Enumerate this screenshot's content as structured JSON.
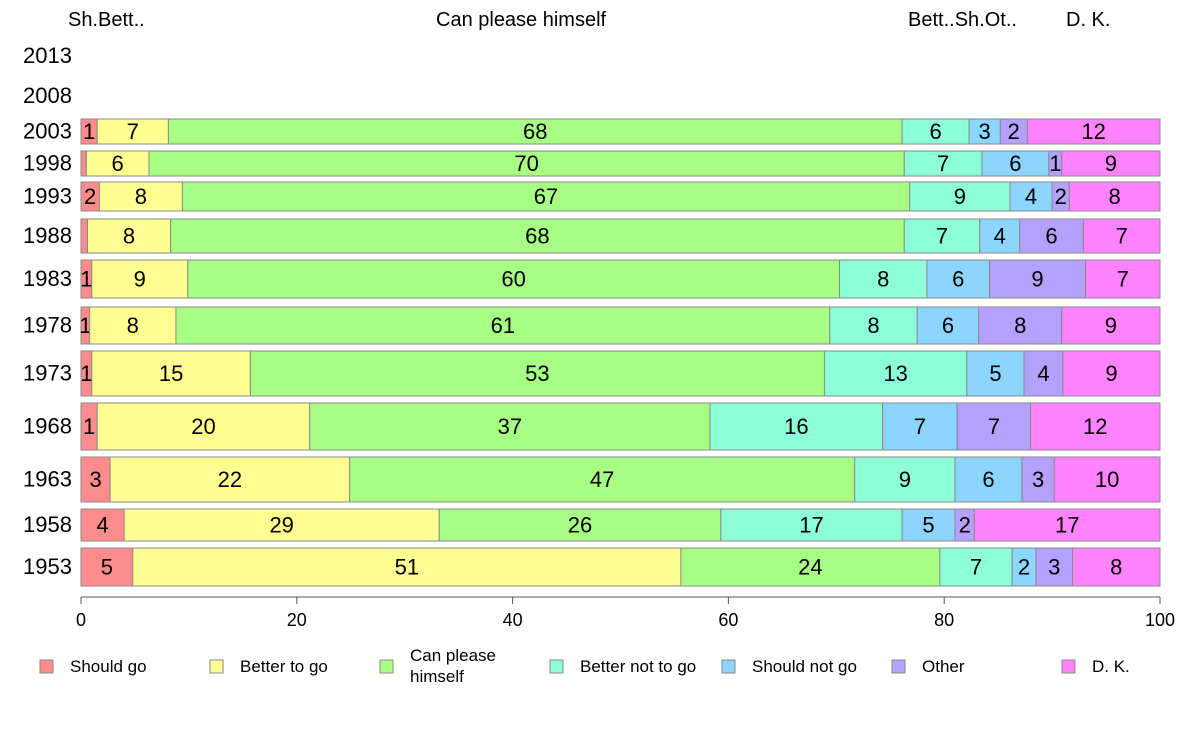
{
  "chart_data": {
    "type": "bar",
    "orientation": "horizontal",
    "stacked": true,
    "top_labels": [
      "Sh.Bett..",
      "Can please himself",
      "Bett..Sh.Ot..",
      "D. K."
    ],
    "categories": [
      "2013",
      "2008",
      "2003",
      "1998",
      "1993",
      "1988",
      "1983",
      "1978",
      "1973",
      "1968",
      "1963",
      "1958",
      "1953"
    ],
    "series": [
      {
        "name": "Should go",
        "color": "#ff8c8c",
        "values": [
          null,
          null,
          1.5,
          0.5,
          1.7,
          0.6,
          1.0,
          0.8,
          1.0,
          1.5,
          2.7,
          4.0,
          4.8
        ]
      },
      {
        "name": "Better to go",
        "color": "#ffff91",
        "values": [
          null,
          null,
          6.6,
          5.8,
          7.7,
          7.7,
          8.9,
          8.0,
          14.7,
          19.7,
          22.2,
          29.2,
          50.8
        ]
      },
      {
        "name": "Can please himself",
        "color": "#a7ff84",
        "values": [
          null,
          null,
          68.0,
          70.0,
          67.4,
          68.0,
          60.4,
          60.6,
          53.2,
          37.1,
          46.8,
          26.1,
          24.0
        ]
      },
      {
        "name": "Better not to go",
        "color": "#8dffd8",
        "values": [
          null,
          null,
          6.2,
          7.2,
          9.3,
          7.0,
          8.1,
          8.1,
          13.2,
          16.0,
          9.3,
          16.8,
          6.7
        ]
      },
      {
        "name": "Should not go",
        "color": "#8cd5ff",
        "values": [
          null,
          null,
          2.9,
          6.2,
          3.9,
          3.7,
          5.8,
          5.7,
          5.3,
          6.9,
          6.2,
          4.9,
          2.2
        ]
      },
      {
        "name": "Other",
        "color": "#b4a0ff",
        "values": [
          null,
          null,
          2.5,
          1.2,
          1.6,
          5.9,
          8.9,
          7.7,
          3.6,
          6.8,
          3.0,
          1.8,
          3.4
        ]
      },
      {
        "name": "D. K.",
        "color": "#ff82ff",
        "values": [
          null,
          null,
          12.3,
          9.1,
          8.4,
          7.1,
          6.9,
          9.1,
          9.0,
          12.0,
          9.8,
          17.2,
          8.1
        ]
      }
    ],
    "data_labels": [
      [],
      [],
      [
        "1",
        "7",
        "68",
        "6",
        "3",
        "2",
        "12"
      ],
      [
        "",
        "6",
        "70",
        "7",
        "6",
        "1",
        "9"
      ],
      [
        "2",
        "8",
        "67",
        "9",
        "4",
        "2",
        "8"
      ],
      [
        "",
        "8",
        "68",
        "7",
        "4",
        "6",
        "7"
      ],
      [
        "1",
        "9",
        "60",
        "8",
        "6",
        "9",
        "7"
      ],
      [
        "1",
        "8",
        "61",
        "8",
        "6",
        "8",
        "9"
      ],
      [
        "1",
        "15",
        "53",
        "13",
        "5",
        "4",
        "9"
      ],
      [
        "1",
        "20",
        "37",
        "16",
        "7",
        "7",
        "12"
      ],
      [
        "3",
        "22",
        "47",
        "9",
        "6",
        "3",
        "10"
      ],
      [
        "4",
        "29",
        "26",
        "17",
        "5",
        "2",
        "17"
      ],
      [
        "5",
        "51",
        "24",
        "7",
        "2",
        "3",
        "8"
      ]
    ],
    "x_ticks": [
      "0",
      "20",
      "40",
      "60",
      "80",
      "100"
    ],
    "xlim": [
      0,
      100
    ],
    "legend": [
      "Should go",
      "Better to go",
      "Can please himself",
      "Better not to go",
      "Should not go",
      "Other",
      "D. K."
    ],
    "legend_position": "bottom",
    "grid": false
  }
}
